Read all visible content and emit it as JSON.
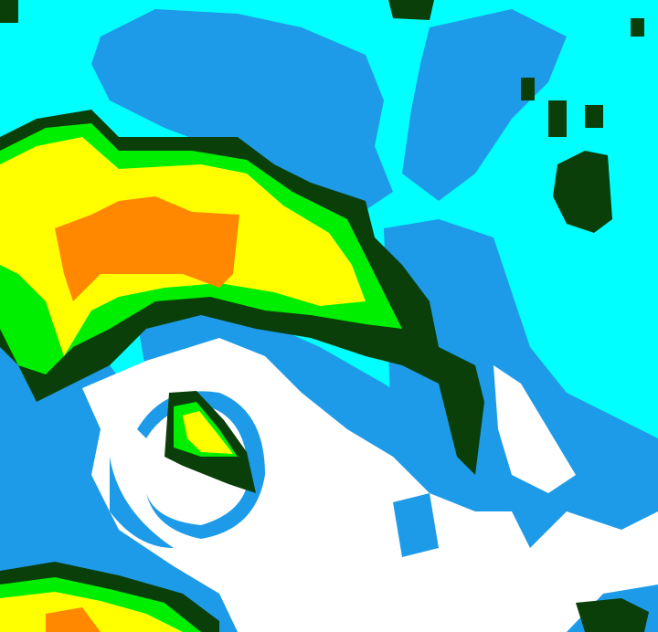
{
  "image": {
    "kind": "false-color satellite cloud image",
    "palette": {
      "clear": "#00ffff",
      "low_cloud": "#1e9be8",
      "high_cloud": "#ffffff",
      "cold_top_1": "#0a3f0a",
      "cold_top_2": "#00ee00",
      "cold_top_3": "#ffff00",
      "cold_top_4": "#ff8800"
    }
  }
}
